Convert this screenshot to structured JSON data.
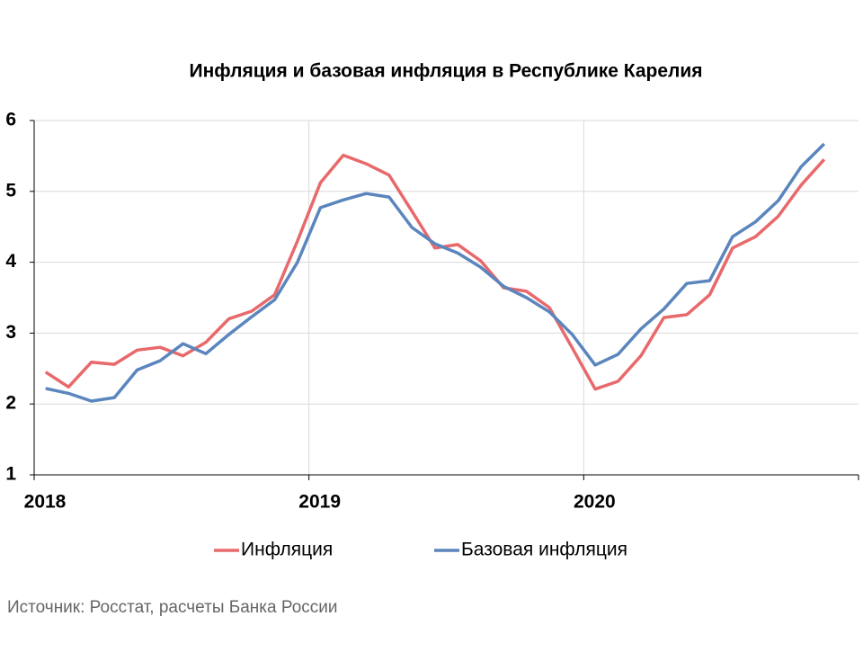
{
  "chart_data": {
    "type": "line",
    "title": "Инфляция и базовая инфляция в Республике Карелия",
    "source": "Источник: Росстат, расчеты Банка России",
    "categories": [
      "2018",
      null,
      null,
      null,
      null,
      null,
      null,
      null,
      null,
      null,
      null,
      null,
      "2019",
      null,
      null,
      null,
      null,
      null,
      null,
      null,
      null,
      null,
      null,
      null,
      "2020",
      null,
      null,
      null,
      null,
      null,
      null,
      null,
      null,
      null,
      null
    ],
    "series": [
      {
        "name": "Инфляция",
        "color": "#e8696b",
        "values": [
          2.45,
          2.24,
          2.59,
          2.56,
          2.76,
          2.8,
          2.68,
          2.87,
          3.2,
          3.31,
          3.54,
          4.3,
          5.12,
          5.51,
          5.39,
          5.23,
          4.72,
          4.2,
          4.25,
          4.02,
          3.64,
          3.59,
          3.36,
          2.79,
          2.21,
          2.32,
          2.68,
          3.22,
          3.26,
          3.54,
          4.2,
          4.36,
          4.65,
          5.09,
          5.45
        ]
      },
      {
        "name": "Базовая инфляция",
        "color": "#5b86bd",
        "values": [
          2.22,
          2.15,
          2.04,
          2.09,
          2.48,
          2.61,
          2.85,
          2.71,
          2.98,
          3.23,
          3.47,
          4.0,
          4.77,
          4.88,
          4.97,
          4.92,
          4.49,
          4.26,
          4.13,
          3.93,
          3.66,
          3.5,
          3.3,
          2.98,
          2.55,
          2.7,
          3.06,
          3.34,
          3.7,
          3.74,
          4.36,
          4.57,
          4.87,
          5.35,
          5.67
        ]
      }
    ],
    "ylim": [
      1,
      6
    ],
    "yticks": [
      1,
      2,
      3,
      4,
      5,
      6
    ],
    "grid": true,
    "legend": "bottom"
  }
}
